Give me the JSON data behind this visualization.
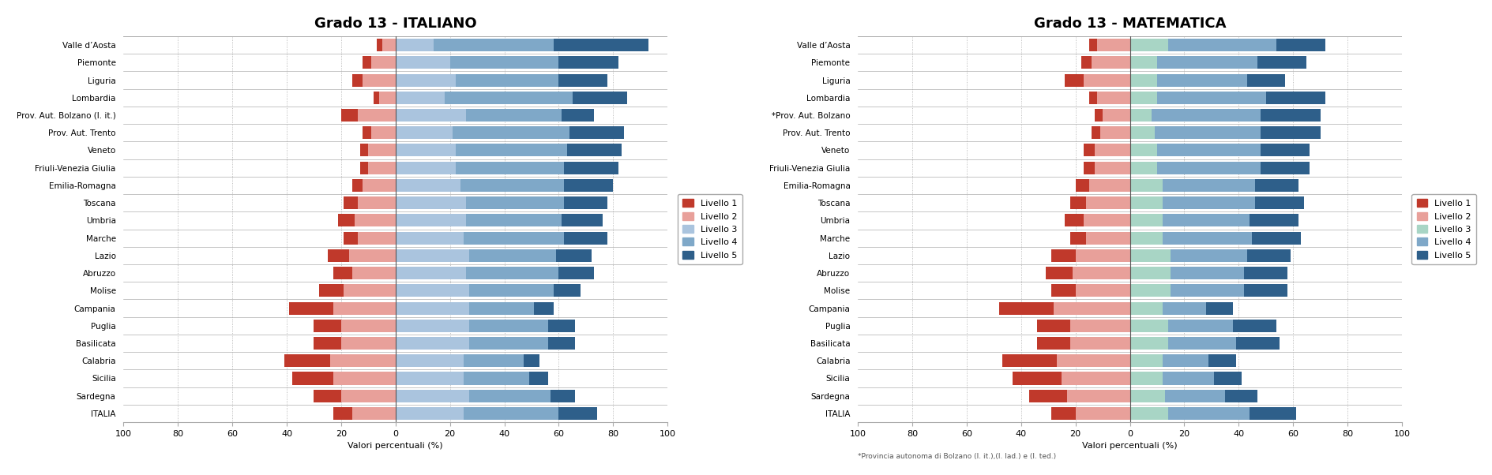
{
  "title_italiano": "Grado 13 - ITALIANO",
  "title_matematica": "Grado 13 - MATEMATICA",
  "xlabel": "Valori percentuali (%)",
  "note_matematica": "*Provincia autonoma di Bolzano (l. it.),(l. lad.) e (l. ted.)",
  "regions_italiano": [
    "Valle d’Aosta",
    "Piemonte",
    "Liguria",
    "Lombardia",
    "Prov. Aut. Bolzano (l. it.)",
    "Prov. Aut. Trento",
    "Veneto",
    "Friuli-Venezia Giulia",
    "Emilia-Romagna",
    "Toscana",
    "Umbria",
    "Marche",
    "Lazio",
    "Abruzzo",
    "Molise",
    "Campania",
    "Puglia",
    "Basilicata",
    "Calabria",
    "Sicilia",
    "Sardegna",
    "ITALIA"
  ],
  "regions_matematica": [
    "Valle d’Aosta",
    "Piemonte",
    "Liguria",
    "Lombardia",
    "*Prov. Aut. Bolzano",
    "Prov. Aut. Trento",
    "Veneto",
    "Friuli-Venezia Giulia",
    "Emilia-Romagna",
    "Toscana",
    "Umbria",
    "Marche",
    "Lazio",
    "Abruzzo",
    "Molise",
    "Campania",
    "Puglia",
    "Basilicata",
    "Calabria",
    "Sicilia",
    "Sardegna",
    "ITALIA"
  ],
  "italiano_data": [
    [
      2,
      5,
      14,
      44,
      35
    ],
    [
      3,
      9,
      20,
      40,
      22
    ],
    [
      4,
      12,
      22,
      38,
      18
    ],
    [
      2,
      6,
      18,
      47,
      20
    ],
    [
      6,
      14,
      26,
      35,
      12
    ],
    [
      3,
      9,
      21,
      43,
      20
    ],
    [
      3,
      10,
      22,
      41,
      20
    ],
    [
      3,
      10,
      22,
      40,
      20
    ],
    [
      4,
      12,
      24,
      38,
      18
    ],
    [
      5,
      14,
      26,
      36,
      16
    ],
    [
      6,
      15,
      26,
      35,
      15
    ],
    [
      5,
      14,
      25,
      37,
      16
    ],
    [
      8,
      17,
      27,
      32,
      13
    ],
    [
      7,
      16,
      26,
      34,
      13
    ],
    [
      9,
      19,
      27,
      31,
      10
    ],
    [
      16,
      23,
      27,
      24,
      7
    ],
    [
      10,
      20,
      27,
      29,
      10
    ],
    [
      10,
      20,
      27,
      29,
      10
    ],
    [
      17,
      24,
      25,
      22,
      6
    ],
    [
      15,
      23,
      25,
      24,
      7
    ],
    [
      10,
      20,
      27,
      30,
      9
    ],
    [
      7,
      16,
      25,
      35,
      14
    ]
  ],
  "matematica_data": [
    [
      3,
      12,
      14,
      40,
      18
    ],
    [
      4,
      14,
      10,
      37,
      18
    ],
    [
      7,
      17,
      10,
      33,
      14
    ],
    [
      3,
      12,
      10,
      40,
      22
    ],
    [
      3,
      10,
      8,
      40,
      22
    ],
    [
      3,
      11,
      9,
      39,
      22
    ],
    [
      4,
      13,
      10,
      38,
      18
    ],
    [
      4,
      13,
      10,
      38,
      18
    ],
    [
      5,
      15,
      12,
      34,
      16
    ],
    [
      6,
      16,
      12,
      34,
      18
    ],
    [
      7,
      17,
      12,
      32,
      18
    ],
    [
      6,
      16,
      12,
      33,
      18
    ],
    [
      9,
      20,
      15,
      28,
      16
    ],
    [
      10,
      21,
      15,
      27,
      16
    ],
    [
      9,
      20,
      15,
      27,
      16
    ],
    [
      20,
      28,
      12,
      16,
      10
    ],
    [
      12,
      22,
      14,
      24,
      16
    ],
    [
      12,
      22,
      14,
      25,
      16
    ],
    [
      20,
      27,
      12,
      17,
      10
    ],
    [
      18,
      25,
      12,
      19,
      10
    ],
    [
      14,
      23,
      13,
      22,
      12
    ],
    [
      9,
      20,
      14,
      30,
      17
    ]
  ],
  "colors_italiano": {
    "livello1": "#c0392b",
    "livello2": "#e8a09a",
    "livello3": "#aac4de",
    "livello4": "#7fa8c8",
    "livello5": "#2e5f8a"
  },
  "colors_matematica": {
    "livello1": "#c0392b",
    "livello2": "#e8a09a",
    "livello3": "#a8d5c5",
    "livello4": "#7fa8c8",
    "livello5": "#2e5f8a"
  },
  "background_color": "#ffffff"
}
